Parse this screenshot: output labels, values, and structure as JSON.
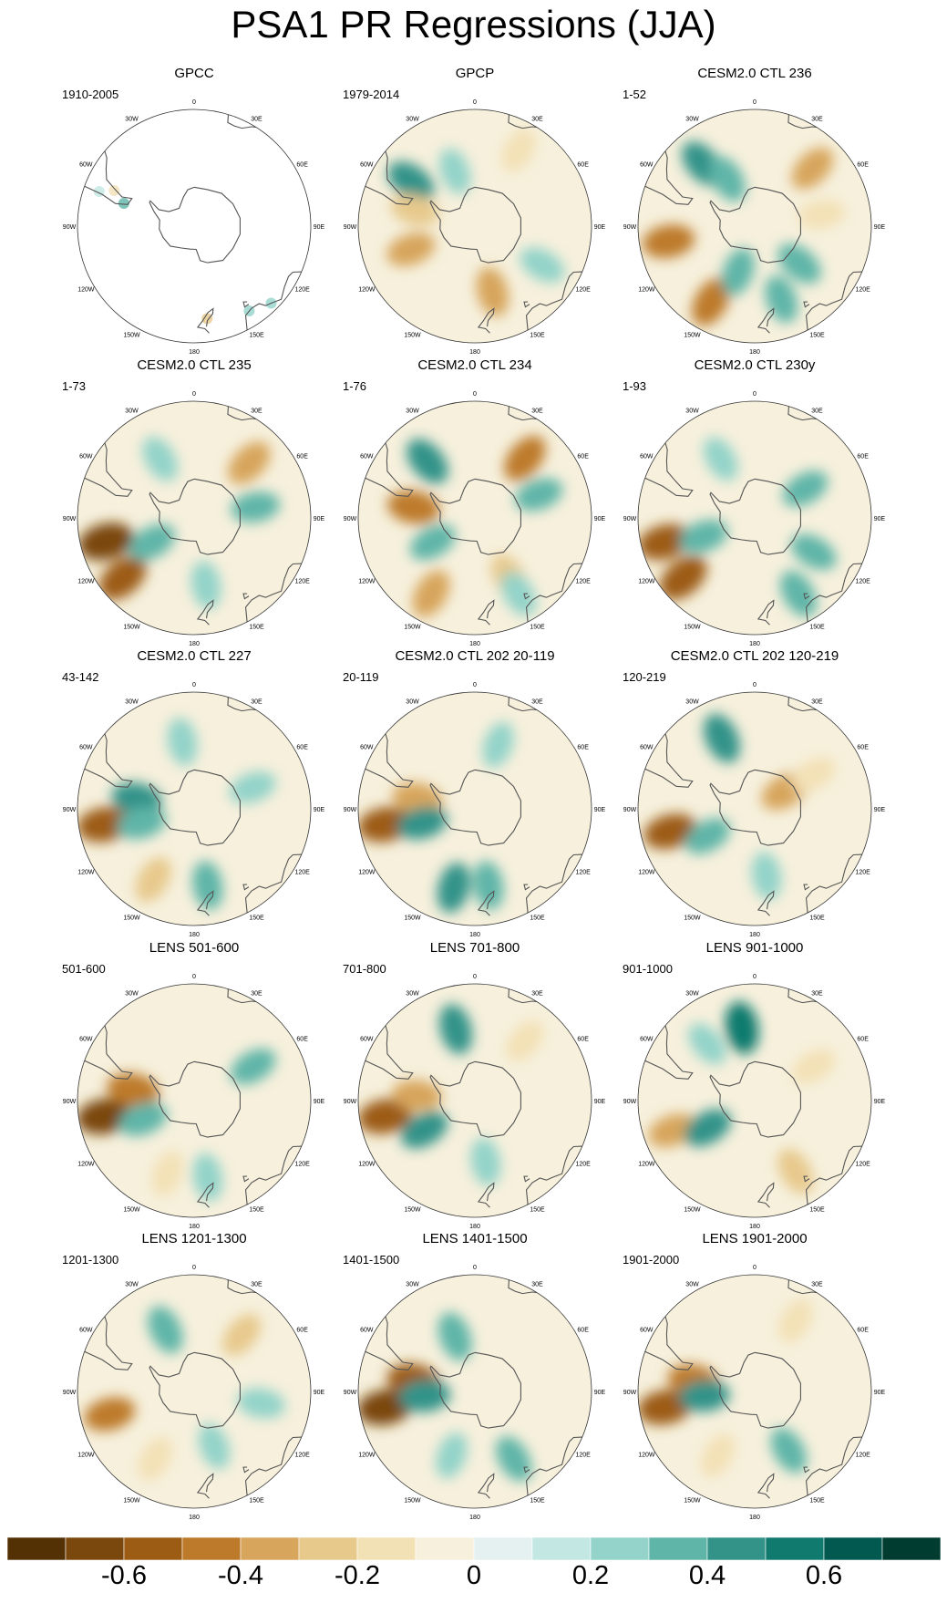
{
  "title": "PSA1 PR Regressions (JJA)",
  "chart_data": {
    "type": "heatmap",
    "projection": "south-polar-stereographic",
    "panels": [
      {
        "title": "GPCC",
        "period": "1910-2005",
        "coverage": "land-only",
        "features": []
      },
      {
        "title": "GPCP",
        "period": "1979-2014",
        "features": [
          {
            "lon": -55,
            "lat": -50,
            "value": 0.45
          },
          {
            "lon": -110,
            "lat": -55,
            "value": -0.35
          },
          {
            "lon": 165,
            "lat": -55,
            "value": -0.35
          },
          {
            "lon": -75,
            "lat": -58,
            "value": -0.3
          },
          {
            "lon": 30,
            "lat": -45,
            "value": -0.2
          },
          {
            "lon": 120,
            "lat": -50,
            "value": 0.25
          },
          {
            "lon": -20,
            "lat": -60,
            "value": 0.2
          }
        ]
      },
      {
        "title": "CESM2.0 CTL 236",
        "period": "1-52",
        "features": [
          {
            "lon": -100,
            "lat": -45,
            "value": -0.5
          },
          {
            "lon": -150,
            "lat": -45,
            "value": -0.45
          },
          {
            "lon": 45,
            "lat": -48,
            "value": -0.35
          },
          {
            "lon": -40,
            "lat": -48,
            "value": 0.4
          },
          {
            "lon": -30,
            "lat": -62,
            "value": 0.3
          },
          {
            "lon": 130,
            "lat": -60,
            "value": 0.35
          },
          {
            "lon": 160,
            "lat": -50,
            "value": 0.3
          },
          {
            "lon": -160,
            "lat": -65,
            "value": 0.3
          },
          {
            "lon": 80,
            "lat": -55,
            "value": -0.2
          }
        ]
      },
      {
        "title": "CESM2.0 CTL 235",
        "period": "1-73",
        "features": [
          {
            "lon": -105,
            "lat": -43,
            "value": -0.7
          },
          {
            "lon": -130,
            "lat": -42,
            "value": -0.6
          },
          {
            "lon": 45,
            "lat": -50,
            "value": -0.4
          },
          {
            "lon": -120,
            "lat": -65,
            "value": 0.35
          },
          {
            "lon": 80,
            "lat": -58,
            "value": 0.3
          },
          {
            "lon": 170,
            "lat": -55,
            "value": 0.25
          },
          {
            "lon": -30,
            "lat": -55,
            "value": 0.25
          }
        ]
      },
      {
        "title": "CESM2.0 CTL 234",
        "period": "1-76",
        "features": [
          {
            "lon": -40,
            "lat": -52,
            "value": 0.45
          },
          {
            "lon": 40,
            "lat": -50,
            "value": -0.45
          },
          {
            "lon": -80,
            "lat": -58,
            "value": -0.5
          },
          {
            "lon": -150,
            "lat": -45,
            "value": -0.4
          },
          {
            "lon": 150,
            "lat": -55,
            "value": -0.3
          },
          {
            "lon": 70,
            "lat": -55,
            "value": 0.3
          },
          {
            "lon": -120,
            "lat": -65,
            "value": 0.3
          },
          {
            "lon": 150,
            "lat": -45,
            "value": 0.25
          }
        ]
      },
      {
        "title": "CESM2.0 CTL 230y",
        "period": "1-93",
        "features": [
          {
            "lon": -105,
            "lat": -42,
            "value": -0.6
          },
          {
            "lon": -130,
            "lat": -42,
            "value": -0.6
          },
          {
            "lon": -110,
            "lat": -62,
            "value": 0.35
          },
          {
            "lon": 150,
            "lat": -45,
            "value": 0.35
          },
          {
            "lon": 120,
            "lat": -55,
            "value": 0.3
          },
          {
            "lon": 60,
            "lat": -60,
            "value": 0.3
          },
          {
            "lon": -30,
            "lat": -55,
            "value": 0.2
          }
        ]
      },
      {
        "title": "CESM2.0 CTL 227",
        "period": "43-142",
        "features": [
          {
            "lon": -100,
            "lat": -43,
            "value": -0.6
          },
          {
            "lon": -80,
            "lat": -60,
            "value": 0.4
          },
          {
            "lon": -105,
            "lat": -62,
            "value": 0.35
          },
          {
            "lon": 170,
            "lat": -50,
            "value": 0.3
          },
          {
            "lon": -150,
            "lat": -48,
            "value": -0.3
          },
          {
            "lon": 70,
            "lat": -58,
            "value": 0.25
          },
          {
            "lon": -10,
            "lat": -55,
            "value": 0.25
          }
        ]
      },
      {
        "title": "CESM2.0 CTL 202 20-119",
        "period": "20-119",
        "features": [
          {
            "lon": -100,
            "lat": -43,
            "value": -0.6
          },
          {
            "lon": -80,
            "lat": -60,
            "value": -0.4
          },
          {
            "lon": -105,
            "lat": -62,
            "value": 0.4
          },
          {
            "lon": -165,
            "lat": -48,
            "value": 0.4
          },
          {
            "lon": 170,
            "lat": -50,
            "value": 0.3
          },
          {
            "lon": 20,
            "lat": -55,
            "value": 0.2
          }
        ]
      },
      {
        "title": "CESM2.0 CTL 202 120-219",
        "period": "120-219",
        "features": [
          {
            "lon": -105,
            "lat": -45,
            "value": -0.55
          },
          {
            "lon": -25,
            "lat": -50,
            "value": 0.45
          },
          {
            "lon": 60,
            "lat": -72,
            "value": -0.4
          },
          {
            "lon": -120,
            "lat": -62,
            "value": 0.3
          },
          {
            "lon": 60,
            "lat": -55,
            "value": -0.2
          },
          {
            "lon": 170,
            "lat": -55,
            "value": 0.25
          }
        ]
      },
      {
        "title": "LENS 501-600",
        "period": "501-600",
        "features": [
          {
            "lon": -100,
            "lat": -43,
            "value": -0.65
          },
          {
            "lon": -80,
            "lat": -58,
            "value": -0.5
          },
          {
            "lon": -110,
            "lat": -62,
            "value": 0.35
          },
          {
            "lon": 60,
            "lat": -55,
            "value": 0.3
          },
          {
            "lon": 170,
            "lat": -50,
            "value": 0.25
          },
          {
            "lon": -160,
            "lat": -50,
            "value": -0.2
          }
        ]
      },
      {
        "title": "LENS 701-800",
        "period": "701-800",
        "features": [
          {
            "lon": -100,
            "lat": -43,
            "value": -0.6
          },
          {
            "lon": -15,
            "lat": -52,
            "value": 0.4
          },
          {
            "lon": -120,
            "lat": -60,
            "value": 0.4
          },
          {
            "lon": 170,
            "lat": -58,
            "value": 0.25
          },
          {
            "lon": 40,
            "lat": -50,
            "value": -0.2
          },
          {
            "lon": -85,
            "lat": -60,
            "value": -0.35
          }
        ]
      },
      {
        "title": "LENS 901-1000",
        "period": "901-1000",
        "features": [
          {
            "lon": -10,
            "lat": -52,
            "value": 0.5
          },
          {
            "lon": -110,
            "lat": -45,
            "value": -0.35
          },
          {
            "lon": -120,
            "lat": -62,
            "value": 0.4
          },
          {
            "lon": 150,
            "lat": -48,
            "value": -0.3
          },
          {
            "lon": 60,
            "lat": -55,
            "value": -0.2
          },
          {
            "lon": -40,
            "lat": -52,
            "value": 0.2
          }
        ]
      },
      {
        "title": "LENS 1201-1300",
        "period": "1201-1300",
        "features": [
          {
            "lon": -105,
            "lat": -45,
            "value": -0.45
          },
          {
            "lon": -25,
            "lat": -55,
            "value": 0.35
          },
          {
            "lon": 40,
            "lat": -52,
            "value": -0.25
          },
          {
            "lon": -150,
            "lat": -50,
            "value": -0.2
          },
          {
            "lon": 100,
            "lat": -55,
            "value": 0.25
          },
          {
            "lon": 160,
            "lat": -60,
            "value": 0.2
          }
        ]
      },
      {
        "title": "LENS 1401-1500",
        "period": "1401-1500",
        "features": [
          {
            "lon": -100,
            "lat": -43,
            "value": -0.65
          },
          {
            "lon": -80,
            "lat": -58,
            "value": -0.55
          },
          {
            "lon": -95,
            "lat": -64,
            "value": 0.45
          },
          {
            "lon": -20,
            "lat": -60,
            "value": 0.35
          },
          {
            "lon": 150,
            "lat": -50,
            "value": 0.3
          },
          {
            "lon": -160,
            "lat": -55,
            "value": 0.2
          }
        ]
      },
      {
        "title": "LENS 1901-2000",
        "period": "1901-2000",
        "features": [
          {
            "lon": -100,
            "lat": -43,
            "value": -0.6
          },
          {
            "lon": -80,
            "lat": -58,
            "value": -0.45
          },
          {
            "lon": -95,
            "lat": -64,
            "value": 0.4
          },
          {
            "lon": 150,
            "lat": -55,
            "value": 0.3
          },
          {
            "lon": 30,
            "lat": -48,
            "value": -0.2
          },
          {
            "lon": -150,
            "lat": -52,
            "value": -0.2
          }
        ]
      }
    ],
    "map_labels": {
      "lon_ticks": [
        "0",
        "30E",
        "60E",
        "90E",
        "120E",
        "150E",
        "180",
        "150W",
        "120W",
        "90W",
        "60W",
        "30W"
      ],
      "lon_values": [
        0,
        30,
        60,
        90,
        120,
        150,
        180,
        -150,
        -120,
        -90,
        -60,
        -30
      ]
    },
    "colorbar": {
      "levels": [
        -0.8,
        -0.7,
        -0.6,
        -0.5,
        -0.4,
        -0.3,
        -0.2,
        -0.1,
        0,
        0.1,
        0.2,
        0.3,
        0.4,
        0.5,
        0.6,
        0.7,
        0.8
      ],
      "colors": [
        "#543005",
        "#7a470c",
        "#9c5c13",
        "#bd7a2a",
        "#d7a55c",
        "#e7c98c",
        "#f3e1b6",
        "#f6f0dc",
        "#e4f1f0",
        "#c3e7e2",
        "#93d3c9",
        "#5fb5a8",
        "#339389",
        "#117a6e",
        "#01594f",
        "#003c30"
      ],
      "tick_labels": [
        "-0.6",
        "-0.4",
        "-0.2",
        "0",
        "0.2",
        "0.4",
        "0.6"
      ],
      "tick_values": [
        -0.6,
        -0.4,
        -0.2,
        0,
        0.2,
        0.4,
        0.6
      ]
    }
  }
}
